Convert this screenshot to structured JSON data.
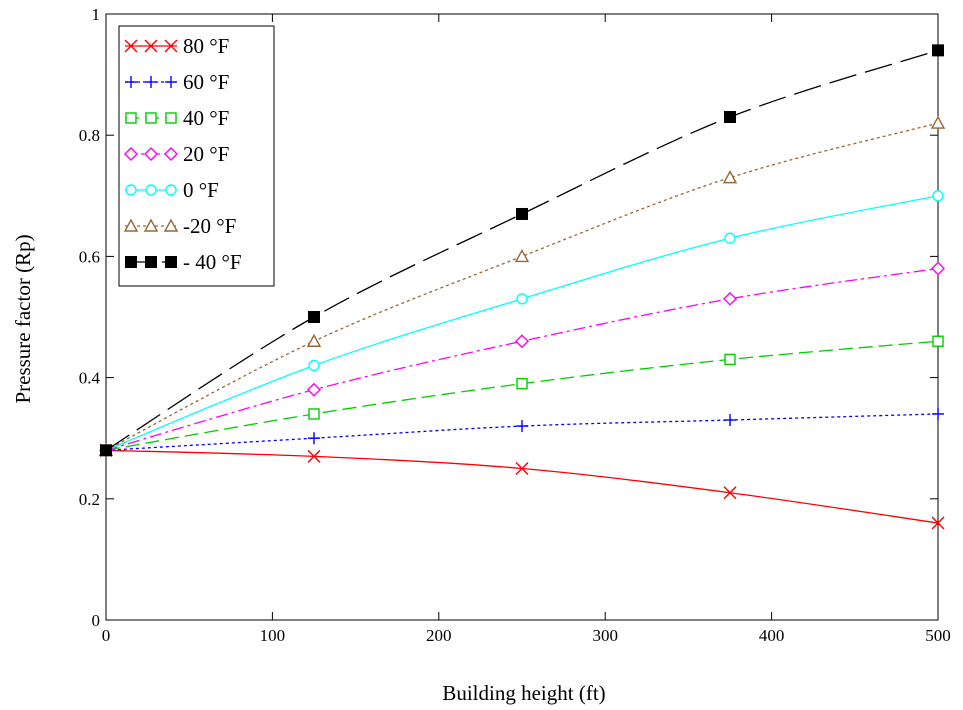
{
  "chart_data": {
    "type": "line",
    "title": "",
    "xlabel": "Building height (ft)",
    "ylabel": "Pressure factor (Rp)",
    "xlim": [
      0,
      500
    ],
    "ylim": [
      0,
      1
    ],
    "x_ticks": [
      "0",
      "100",
      "200",
      "300",
      "400",
      "500"
    ],
    "y_ticks": [
      "0",
      "0.2",
      "0.4",
      "0.6",
      "0.8",
      "1"
    ],
    "grid": false,
    "legend_position": "top-left",
    "x": [
      0,
      125,
      250,
      375,
      500
    ],
    "series": [
      {
        "name": "80 °F",
        "values": [
          0.28,
          0.27,
          0.25,
          0.21,
          0.16
        ],
        "color": "#ff0000",
        "marker": "x",
        "dash": "solid"
      },
      {
        "name": "60 °F",
        "values": [
          0.28,
          0.3,
          0.32,
          0.33,
          0.34
        ],
        "color": "#0000ff",
        "marker": "plus",
        "dash": "dotted"
      },
      {
        "name": "40 °F",
        "values": [
          0.28,
          0.34,
          0.39,
          0.43,
          0.46
        ],
        "color": "#00cc00",
        "marker": "square",
        "dash": "dashed"
      },
      {
        "name": "20 °F",
        "values": [
          0.28,
          0.38,
          0.46,
          0.53,
          0.58
        ],
        "color": "#ff00ff",
        "marker": "diamond",
        "dash": "dashdot"
      },
      {
        "name": "0 °F",
        "values": [
          0.28,
          0.42,
          0.53,
          0.63,
          0.7
        ],
        "color": "#00ffff",
        "marker": "circle",
        "dash": "solid"
      },
      {
        "name": "-20 °F",
        "values": [
          0.28,
          0.46,
          0.6,
          0.73,
          0.82
        ],
        "color": "#996633",
        "marker": "triangle",
        "dash": "dotted"
      },
      {
        "name": "- 40 °F",
        "values": [
          0.28,
          0.5,
          0.67,
          0.83,
          0.94
        ],
        "color": "#000000",
        "marker": "filled-square",
        "dash": "longdash"
      }
    ]
  }
}
